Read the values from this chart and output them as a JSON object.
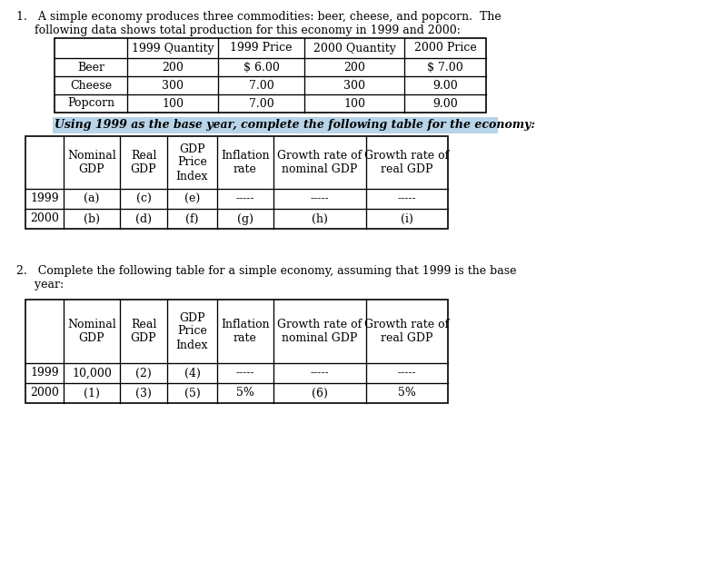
{
  "bg_color": "#ffffff",
  "highlight_color": "#b8d4e8",
  "para1_line1": "1.   A simple economy produces three commodities: beer, cheese, and popcorn.  The",
  "para1_line2": "     following data shows total production for this economy in 1999 and 2000:",
  "para2_line1": "2.   Complete the following table for a simple economy, assuming that 1999 is the base",
  "para2_line2": "     year:",
  "highlight_text": "Using 1999 as the base year, complete the following table for the economy:",
  "table1_headers": [
    "",
    "1999 Quantity",
    "1999 Price",
    "2000 Quantity",
    "2000 Price"
  ],
  "table1_rows": [
    [
      "Beer",
      "200",
      "$ 6.00",
      "200",
      "$ 7.00"
    ],
    [
      "Cheese",
      "300",
      "7.00",
      "300",
      "9.00"
    ],
    [
      "Popcorn",
      "100",
      "7.00",
      "100",
      "9.00"
    ]
  ],
  "table2_headers": [
    "",
    "Nominal\nGDP",
    "Real\nGDP",
    "GDP\nPrice\nIndex",
    "Inflation\nrate",
    "Growth rate of\nnominal GDP",
    "Growth rate of\nreal GDP"
  ],
  "table2_rows": [
    [
      "1999",
      "(a)",
      "(c)",
      "(e)",
      "-----",
      "-----",
      "-----"
    ],
    [
      "2000",
      "(b)",
      "(d)",
      "(f)",
      "(g)",
      "(h)",
      "(i)"
    ]
  ],
  "table3_headers": [
    "",
    "Nominal\nGDP",
    "Real\nGDP",
    "GDP\nPrice\nIndex",
    "Inflation\nrate",
    "Growth rate of\nnominal GDP",
    "Growth rate of\nreal GDP"
  ],
  "table3_rows": [
    [
      "1999",
      "10,000",
      "(2)",
      "(4)",
      "-----",
      "-----",
      "-----"
    ],
    [
      "2000",
      "(1)",
      "(3)",
      "(5)",
      "5%",
      "(6)",
      "5%"
    ]
  ],
  "font_size": 9.0,
  "font_family": "DejaVu Serif"
}
